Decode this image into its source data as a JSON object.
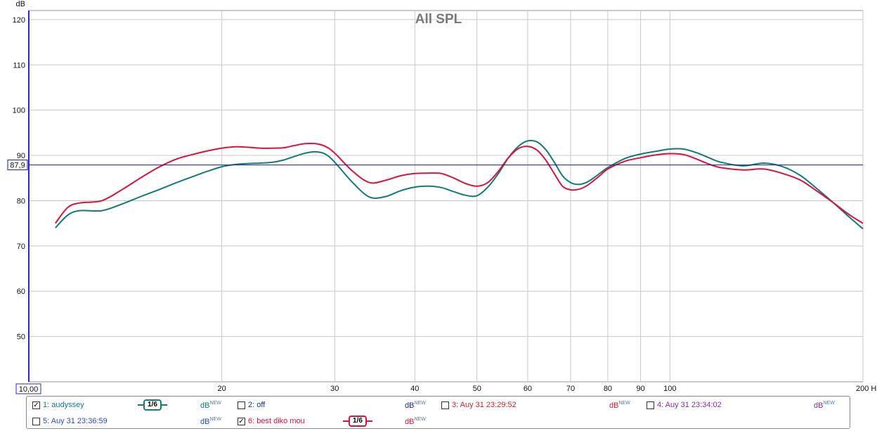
{
  "chart_data": {
    "type": "line",
    "title": "All SPL",
    "ylabel": "dB",
    "xunit": "Hz",
    "xscale": "log",
    "xlim": [
      10,
      200
    ],
    "ylim": [
      40,
      122
    ],
    "x_ticks": [
      20,
      30,
      40,
      50,
      60,
      70,
      80,
      90,
      100,
      200
    ],
    "x_tick_labels": [
      "20",
      "30",
      "40",
      "50",
      "60",
      "70",
      "80",
      "90",
      "100",
      "200 Hz"
    ],
    "x_start_label": "10,00",
    "y_ticks": [
      50,
      60,
      70,
      80,
      90,
      100,
      110,
      120
    ],
    "reference_line": {
      "value": 87.9,
      "label": "87,9",
      "color": "#1a1a8c"
    },
    "grid": true,
    "series": [
      {
        "name": "1: audyssey",
        "color": "#127a7a",
        "x": [
          11,
          11.5,
          12,
          13,
          14,
          15,
          16,
          17,
          18,
          19,
          20,
          21,
          22,
          23,
          24,
          25,
          26,
          27,
          28,
          29,
          30,
          32,
          34,
          36,
          38,
          40,
          42,
          44,
          46,
          48,
          50,
          52,
          54,
          56,
          58,
          60,
          62,
          64,
          66,
          68,
          70,
          72,
          74,
          76,
          78,
          80,
          85,
          90,
          95,
          100,
          105,
          110,
          115,
          120,
          130,
          140,
          150,
          160,
          170,
          180,
          190,
          200
        ],
        "y": [
          74,
          76.8,
          77.8,
          77.8,
          79.3,
          81,
          82.5,
          84,
          85.3,
          86.5,
          87.5,
          88,
          88.2,
          88.3,
          88.5,
          89,
          89.8,
          90.5,
          90.8,
          90.3,
          88.5,
          84,
          80.8,
          80.9,
          82.2,
          83,
          83.2,
          82.9,
          82,
          81.2,
          81.1,
          83,
          86,
          89.5,
          92,
          93.2,
          93,
          91.3,
          88.5,
          85.5,
          84,
          83.6,
          84,
          85,
          86.2,
          87.3,
          89.3,
          90.3,
          90.9,
          91.4,
          91.4,
          90.6,
          89.5,
          88.5,
          87.7,
          88.3,
          87.5,
          85.5,
          82.5,
          79.5,
          76.5,
          73.8
        ]
      },
      {
        "name": "6: best diko mou",
        "color": "#e0103c",
        "x": [
          11,
          11.5,
          12,
          13,
          14,
          15,
          16,
          17,
          18,
          19,
          20,
          21,
          22,
          23,
          24,
          25,
          26,
          27,
          28,
          29,
          30,
          32,
          34,
          36,
          38,
          40,
          42,
          44,
          46,
          48,
          50,
          52,
          54,
          56,
          58,
          60,
          62,
          64,
          66,
          68,
          70,
          72,
          74,
          76,
          78,
          80,
          85,
          90,
          95,
          100,
          105,
          110,
          115,
          120,
          130,
          140,
          150,
          160,
          170,
          180,
          190,
          200
        ],
        "y": [
          75,
          78.5,
          79.5,
          80,
          82.5,
          85.2,
          87.5,
          89.2,
          90.2,
          91,
          91.6,
          91.9,
          91.8,
          91.6,
          91.6,
          91.7,
          92.2,
          92.6,
          92.6,
          92,
          90.5,
          86.5,
          84,
          84.5,
          85.5,
          86,
          86.1,
          86,
          85,
          83.8,
          83.2,
          84,
          86.5,
          89.5,
          91.5,
          92,
          91.2,
          89,
          86,
          83.2,
          82.4,
          82.5,
          83.2,
          84.4,
          85.7,
          87,
          88.7,
          89.5,
          90.1,
          90.4,
          90.2,
          89.2,
          88.1,
          87.3,
          86.8,
          87,
          86,
          84.5,
          82,
          79.5,
          77,
          75
        ]
      }
    ]
  },
  "legend": {
    "items": [
      {
        "label": "1: audyssey",
        "checked": true,
        "color": "#127a7a",
        "unit": "dB",
        "unit_tag": "NEW",
        "smoothing": "1/6"
      },
      {
        "label": "2: off",
        "checked": false,
        "color": "#1a2a9c",
        "unit": "dB",
        "unit_tag": "NEW"
      },
      {
        "label": "3: Auy 31 23:29:52",
        "checked": false,
        "color": "#d81e2a",
        "unit": "dB",
        "unit_tag": "NEW"
      },
      {
        "label": "4: Auy 31 23:34:02",
        "checked": false,
        "color": "#8a2aa8",
        "unit": "dB",
        "unit_tag": "NEW"
      },
      {
        "label": "5: Auy 31 23:36:59",
        "checked": false,
        "color": "#2a4acc",
        "unit": "dB",
        "unit_tag": "NEW"
      },
      {
        "label": "6: best diko mou",
        "checked": true,
        "color": "#e0103c",
        "unit": "dB",
        "unit_tag": "NEW",
        "smoothing": "1/6"
      }
    ]
  }
}
